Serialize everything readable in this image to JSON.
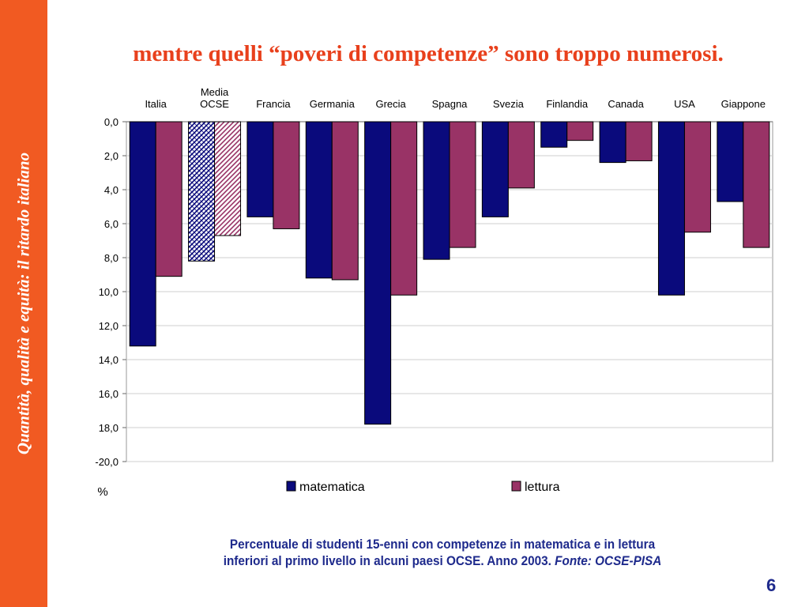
{
  "sidebar": {
    "text": "Quantità, qualità e equità: il ritardo italiano"
  },
  "slide": {
    "title": "mentre quelli “poveri di competenze” sono troppo numerosi.",
    "caption_line1": "Percentuale di studenti 15-enni con competenze in matematica e in lettura",
    "caption_line2": "inferiori al primo livello  in alcuni paesi OCSE. Anno 2003. ",
    "caption_source": "Fonte: OCSE-PISA",
    "page_number": "6"
  },
  "chart_data": {
    "type": "bar",
    "orientation": "inverted-vertical",
    "categories": [
      "Italia",
      "Media\nOCSE",
      "Francia",
      "Germania",
      "Grecia",
      "Spagna",
      "Svezia",
      "Finlandia",
      "Canada",
      "USA",
      "Giappone"
    ],
    "series": [
      {
        "name": "matematica",
        "values": [
          13.2,
          8.2,
          5.6,
          9.2,
          17.8,
          8.1,
          5.6,
          1.5,
          2.4,
          10.2,
          4.7
        ],
        "color": "#0a0a7c"
      },
      {
        "name": "lettura",
        "values": [
          9.1,
          6.7,
          6.3,
          9.3,
          10.2,
          7.4,
          3.9,
          1.1,
          2.3,
          6.5,
          7.4
        ],
        "color": "#993366"
      }
    ],
    "hatched_category": "Media\nOCSE",
    "y_ticks": [
      "0,0",
      "2,0",
      "4,0",
      "6,0",
      "8,0",
      "10,0",
      "12,0",
      "14,0",
      "16,0",
      "18,0",
      "-20,0"
    ],
    "ylim": [
      0,
      20
    ],
    "ylabel": "%",
    "grid": true,
    "legend_position": "bottom"
  }
}
